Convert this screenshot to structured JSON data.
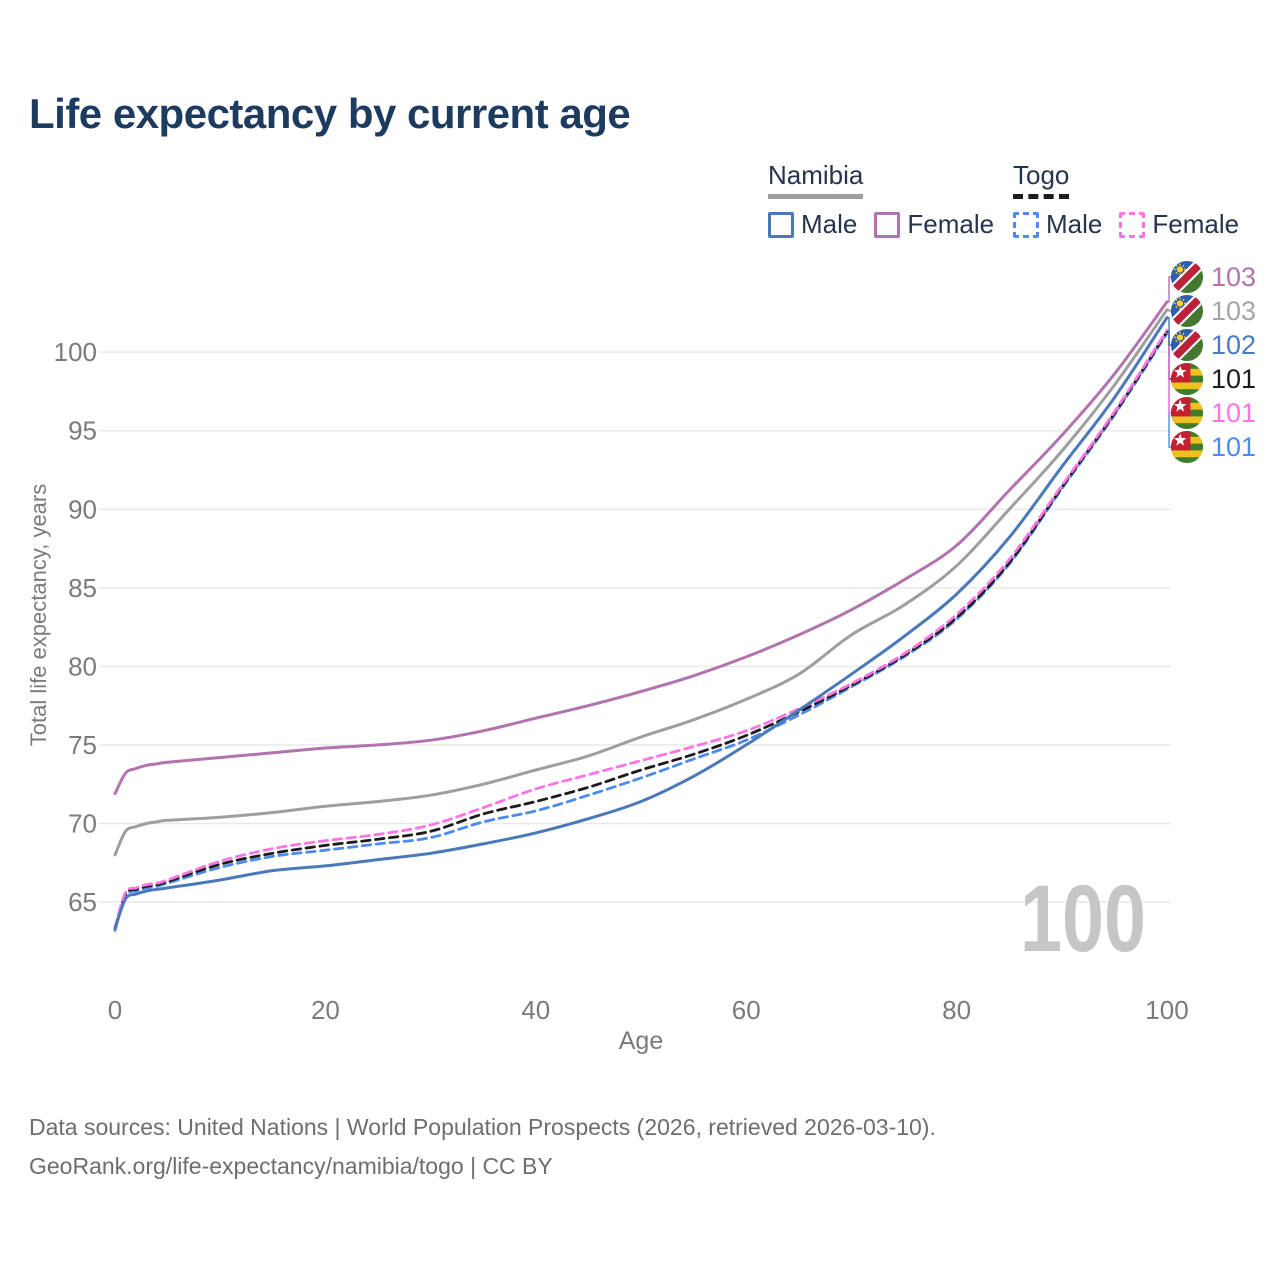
{
  "title": "Life expectancy by current age",
  "legend": {
    "groups": [
      {
        "name": "Namibia",
        "style": "solid",
        "underline_color": "#9e9e9e",
        "items": [
          {
            "label": "Male",
            "color": "#4a79bb",
            "dashed": false
          },
          {
            "label": "Female",
            "color": "#b273af",
            "dashed": false
          }
        ]
      },
      {
        "name": "Togo",
        "style": "dashed",
        "underline_color": "#1c1c1c",
        "items": [
          {
            "label": "Male",
            "color": "#4d8bf0",
            "dashed": true
          },
          {
            "label": "Female",
            "color": "#ff74e4",
            "dashed": true
          }
        ]
      }
    ]
  },
  "watermark": "100",
  "footer": {
    "line1": "Data sources: United Nations | World Population Prospects (2026, retrieved 2026-03-10).",
    "line2": "GeoRank.org/life-expectancy/namibia/togo | CC BY"
  },
  "chart_data": {
    "type": "line",
    "title": "Life expectancy by current age",
    "x_axis": {
      "label": "Age",
      "ticks": [
        0,
        20,
        40,
        60,
        80,
        100
      ],
      "range": [
        0,
        100
      ]
    },
    "y_axis": {
      "label": "Total life expectancy, years",
      "ticks": [
        65,
        70,
        75,
        80,
        85,
        90,
        95,
        100
      ],
      "range": [
        63,
        104
      ]
    },
    "grid": "horizontal",
    "grid_color": "#e8e8e8",
    "axis_text_color": "#7b7b7b",
    "ages": [
      0,
      1,
      2,
      3,
      4,
      5,
      10,
      15,
      20,
      25,
      30,
      35,
      40,
      45,
      50,
      55,
      60,
      65,
      70,
      75,
      80,
      85,
      90,
      95,
      100
    ],
    "series": [
      {
        "id": "namibia-total",
        "name": "Namibia",
        "color": "#9e9e9e",
        "dashed": false,
        "flag": "namibia",
        "label_row": 1,
        "end_label": "103",
        "end_label_color": "#a6a6a6",
        "values": [
          68.0,
          69.5,
          69.8,
          70.0,
          70.1,
          70.2,
          70.4,
          70.7,
          71.1,
          71.4,
          71.8,
          72.5,
          73.4,
          74.3,
          75.5,
          76.6,
          77.9,
          79.5,
          82.0,
          83.9,
          86.4,
          90.0,
          93.7,
          97.9,
          102.7
        ]
      },
      {
        "id": "namibia-female",
        "name": "Namibia Female",
        "color": "#b273af",
        "dashed": false,
        "flag": "namibia",
        "label_row": 0,
        "end_label": "103",
        "end_label_color": "#b273af",
        "values": [
          71.9,
          73.2,
          73.5,
          73.7,
          73.8,
          73.9,
          74.2,
          74.5,
          74.8,
          75.0,
          75.3,
          75.9,
          76.7,
          77.5,
          78.4,
          79.4,
          80.6,
          82.0,
          83.6,
          85.5,
          87.7,
          91.2,
          94.7,
          98.6,
          103.2
        ]
      },
      {
        "id": "togo-male",
        "name": "Togo Male",
        "color": "#4d8bf0",
        "dashed": true,
        "flag": "togo",
        "label_row": 5,
        "end_label": "101",
        "end_label_color": "#4d8bf0",
        "values": [
          63.2,
          65.4,
          65.7,
          65.9,
          66.0,
          66.2,
          67.2,
          67.9,
          68.3,
          68.7,
          69.1,
          70.1,
          70.8,
          71.8,
          72.9,
          74.1,
          75.3,
          76.9,
          78.7,
          80.6,
          83.0,
          86.5,
          91.3,
          96.0,
          101.2
        ]
      },
      {
        "id": "togo-total",
        "name": "Togo",
        "color": "#1c1c1c",
        "dashed": true,
        "flag": "togo",
        "label_row": 3,
        "end_label": "101",
        "end_label_color": "#1c1c1c",
        "values": [
          63.3,
          65.5,
          65.8,
          66.0,
          66.1,
          66.3,
          67.4,
          68.1,
          68.6,
          69.0,
          69.5,
          70.6,
          71.4,
          72.3,
          73.4,
          74.4,
          75.6,
          77.1,
          78.8,
          80.7,
          83.1,
          86.6,
          91.4,
          96.1,
          101.3
        ]
      },
      {
        "id": "togo-female",
        "name": "Togo Female",
        "color": "#ff74e4",
        "dashed": true,
        "flag": "togo",
        "label_row": 4,
        "end_label": "101",
        "end_label_color": "#ff74e4",
        "values": [
          63.4,
          65.6,
          65.9,
          66.1,
          66.2,
          66.4,
          67.6,
          68.4,
          68.9,
          69.3,
          69.9,
          71.0,
          72.2,
          73.1,
          74.0,
          74.9,
          75.9,
          77.3,
          78.9,
          80.8,
          83.3,
          86.8,
          91.5,
          96.2,
          101.4
        ]
      },
      {
        "id": "namibia-male",
        "name": "Namibia Male",
        "color": "#4a79bb",
        "dashed": false,
        "flag": "namibia",
        "label_row": 2,
        "end_label": "102",
        "end_label_color": "#4a7bc4",
        "values": [
          63.3,
          65.2,
          65.5,
          65.7,
          65.8,
          65.9,
          66.4,
          67.0,
          67.3,
          67.7,
          68.1,
          68.7,
          69.4,
          70.3,
          71.4,
          73.0,
          75.0,
          77.2,
          79.5,
          81.9,
          84.6,
          88.2,
          92.7,
          97.1,
          102.2
        ]
      }
    ]
  }
}
